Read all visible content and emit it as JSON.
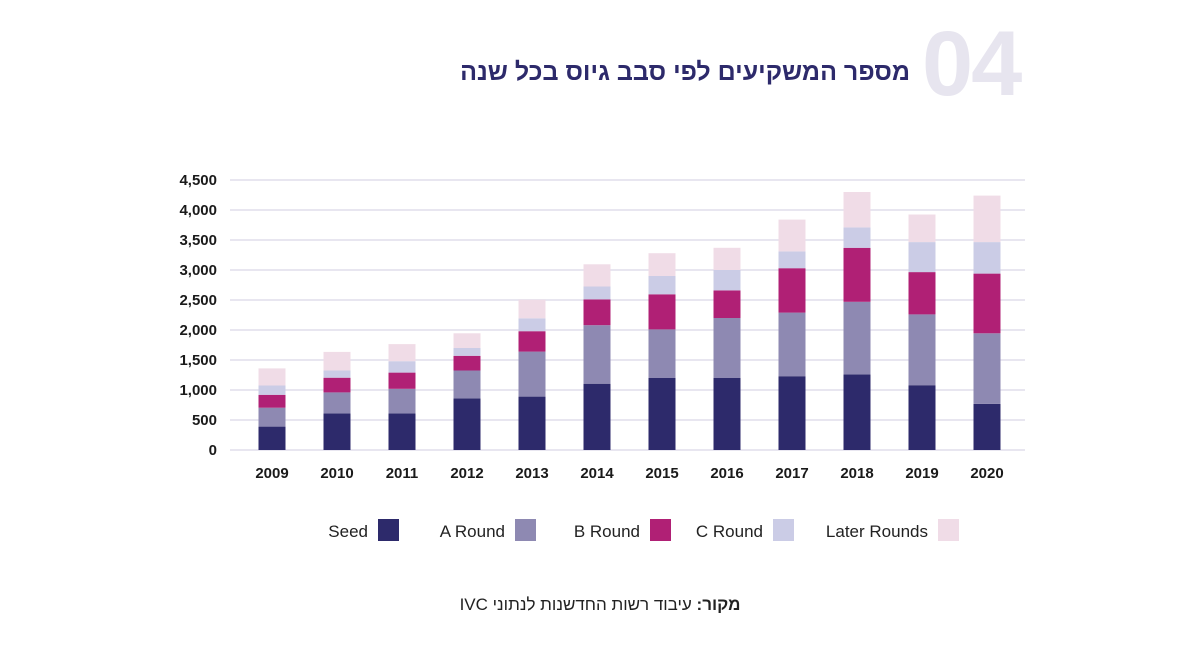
{
  "header": {
    "number": "04",
    "title": "מספר המשקיעים לפי סבב גיוס בכל שנה"
  },
  "source": {
    "label": "מקור:",
    "text": " עיבוד רשות החדשנות לנתוני IVC"
  },
  "chart_data": {
    "type": "bar",
    "stacked": true,
    "categories": [
      "2009",
      "2010",
      "2011",
      "2012",
      "2013",
      "2014",
      "2015",
      "2016",
      "2017",
      "2018",
      "2019",
      "2020"
    ],
    "ylim": [
      0,
      4500
    ],
    "yticks": [
      0,
      500,
      1000,
      1500,
      2000,
      2500,
      3000,
      3500,
      4000,
      4500
    ],
    "ytick_labels": [
      "0",
      "500",
      "1,000",
      "1,500",
      "2,000",
      "2,500",
      "3,000",
      "3,500",
      "4,000",
      "4,500"
    ],
    "grid": true,
    "legend_placement": "bottom",
    "series": [
      {
        "name": "Seed",
        "color": "#2d2a6b",
        "values": [
          390,
          610,
          610,
          860,
          890,
          1105,
          1200,
          1200,
          1230,
          1260,
          1080,
          770
        ]
      },
      {
        "name": "A Round",
        "color": "#8e89b2",
        "values": [
          315,
          350,
          410,
          465,
          750,
          975,
          810,
          1000,
          1060,
          1210,
          1180,
          1175
        ]
      },
      {
        "name": "B Round",
        "color": "#b02075",
        "values": [
          215,
          245,
          270,
          245,
          340,
          430,
          585,
          460,
          740,
          900,
          705,
          995
        ]
      },
      {
        "name": "C Round",
        "color": "#cbcce6",
        "values": [
          155,
          120,
          190,
          130,
          215,
          215,
          305,
          340,
          280,
          340,
          500,
          525
        ]
      },
      {
        "name": "Later Rounds",
        "color": "#f0dce7",
        "values": [
          285,
          310,
          285,
          245,
          310,
          370,
          380,
          370,
          530,
          590,
          460,
          775
        ]
      }
    ]
  }
}
